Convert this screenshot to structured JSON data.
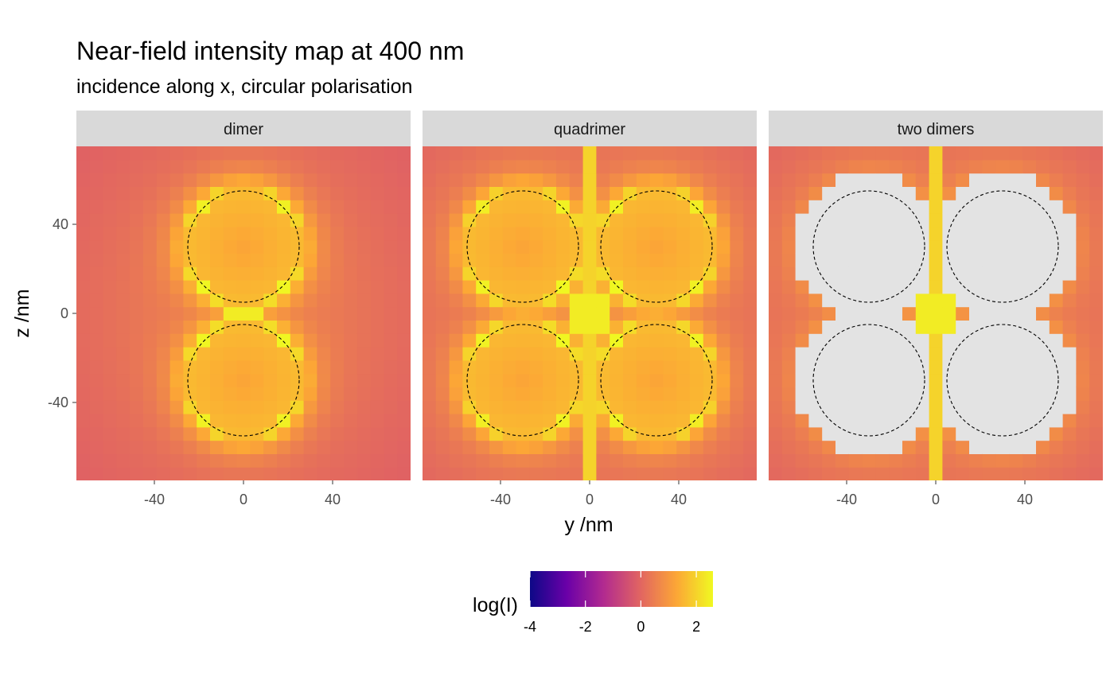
{
  "chart_data": {
    "type": "heatmap",
    "title": "Near-field intensity map at 400 nm",
    "subtitle": "incidence along x, circular polarisation",
    "xlabel": "y /nm",
    "ylabel": "z /nm",
    "xlim": [
      -75,
      75
    ],
    "ylim": [
      -75,
      75
    ],
    "x_ticks": [
      "-40",
      "0",
      "40"
    ],
    "y_ticks": [
      "40",
      "0",
      "-40"
    ],
    "x_tick_values": [
      -40,
      0,
      40
    ],
    "y_tick_values": [
      40,
      0,
      -40
    ],
    "legend": {
      "title": "log(I)",
      "ticks": [
        "-4",
        "-2",
        "0",
        "2"
      ],
      "tick_values": [
        -4,
        -2,
        0,
        2
      ],
      "range": [
        -4,
        2.6
      ],
      "position": "bottom",
      "palette": [
        "#0d0887",
        "#6a00a8",
        "#b12a90",
        "#e16462",
        "#fca636",
        "#f0f921"
      ]
    },
    "na_color": "#e3e3e3",
    "panels": [
      {
        "label": "dimer",
        "particles": [
          {
            "y": 0,
            "z": 30,
            "r": 25
          },
          {
            "y": 0,
            "z": -30,
            "r": 25
          }
        ],
        "saturated": false
      },
      {
        "label": "quadrimer",
        "particles": [
          {
            "y": -30,
            "z": 30,
            "r": 25
          },
          {
            "y": 30,
            "z": 30,
            "r": 25
          },
          {
            "y": -30,
            "z": -30,
            "r": 25
          },
          {
            "y": 30,
            "z": -30,
            "r": 25
          }
        ],
        "saturated": false
      },
      {
        "label": "two dimers",
        "particles": [
          {
            "y": -30,
            "z": 30,
            "r": 25
          },
          {
            "y": 30,
            "z": 30,
            "r": 25
          },
          {
            "y": -30,
            "z": -30,
            "r": 25
          },
          {
            "y": 30,
            "z": -30,
            "r": 25
          }
        ],
        "saturated": true
      }
    ]
  }
}
